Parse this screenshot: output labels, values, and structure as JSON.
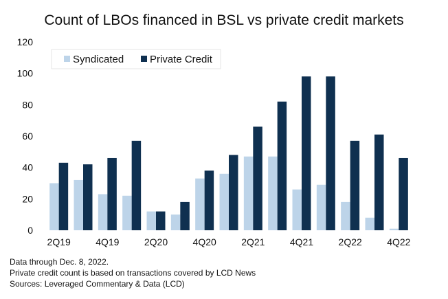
{
  "chart_data": {
    "type": "bar",
    "title": "Count of LBOs financed in BSL vs private credit markets",
    "categories": [
      "2Q19",
      "3Q19",
      "4Q19",
      "1Q20",
      "2Q20",
      "3Q20",
      "4Q20",
      "1Q21",
      "2Q21",
      "3Q21",
      "4Q21",
      "1Q22",
      "2Q22",
      "3Q22",
      "4Q22"
    ],
    "tick_labels_shown": [
      "2Q19",
      "4Q19",
      "2Q20",
      "4Q20",
      "2Q21",
      "4Q21",
      "2Q22",
      "4Q22"
    ],
    "series": [
      {
        "name": "Syndicated",
        "color": "#bdd4e9",
        "values": [
          30,
          32,
          23,
          22,
          12,
          10,
          33,
          36,
          47,
          47,
          26,
          29,
          18,
          8,
          1
        ]
      },
      {
        "name": "Private Credit",
        "color": "#0f3050",
        "values": [
          43,
          42,
          46,
          57,
          12,
          18,
          38,
          48,
          66,
          82,
          98,
          98,
          57,
          61,
          46
        ]
      }
    ],
    "ylim": [
      0,
      120
    ],
    "yticks": [
      0,
      20,
      40,
      60,
      80,
      100,
      120
    ],
    "grid": false,
    "legend": "top-left",
    "xlabel": "",
    "ylabel": ""
  },
  "notes": [
    "Data through Dec. 8, 2022.",
    "Private credit count is based on transactions covered by LCD News",
    "Sources: Leveraged Commentary & Data (LCD)"
  ]
}
